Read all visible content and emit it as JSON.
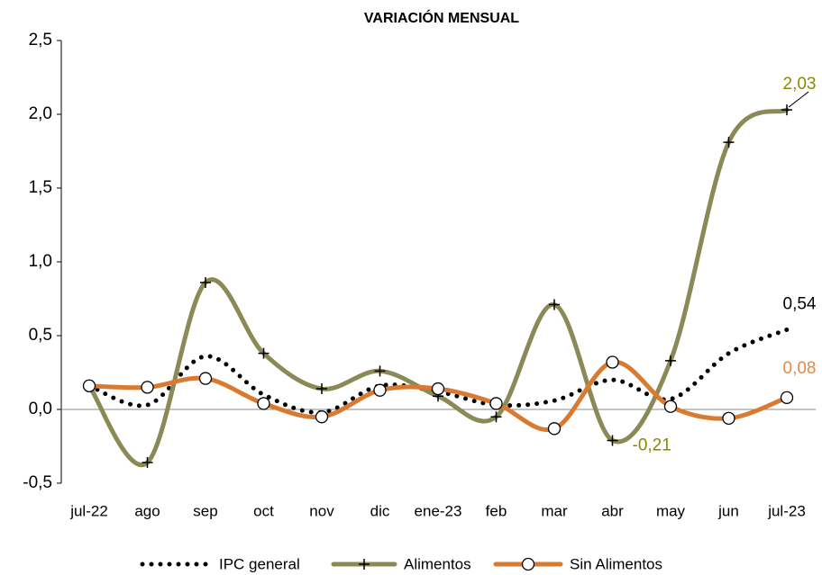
{
  "chart_data": {
    "type": "line",
    "title": "VARIACIÓN MENSUAL",
    "categories": [
      "jul-22",
      "ago",
      "sep",
      "oct",
      "nov",
      "dic",
      "ene-23",
      "feb",
      "mar",
      "abr",
      "may",
      "jun",
      "jul-23"
    ],
    "ylim": [
      -0.5,
      2.5
    ],
    "yticks": [
      {
        "value": -0.5,
        "label": "-0,5"
      },
      {
        "value": 0,
        "label": "0,0"
      },
      {
        "value": 0.5,
        "label": "0,5"
      },
      {
        "value": 1,
        "label": "1,0"
      },
      {
        "value": 1.5,
        "label": "1,5"
      },
      {
        "value": 2,
        "label": "2,0"
      },
      {
        "value": 2.5,
        "label": "2,5"
      }
    ],
    "legend": "bottom",
    "series": [
      {
        "name": "IPC general",
        "color": "#000000",
        "dash": "dotted",
        "marker": null,
        "values": [
          0.16,
          0.03,
          0.36,
          0.1,
          -0.02,
          0.16,
          0.12,
          0.03,
          0.06,
          0.2,
          0.07,
          0.38,
          0.54
        ],
        "value_labels": [
          null,
          null,
          null,
          null,
          null,
          null,
          null,
          null,
          null,
          null,
          null,
          null,
          "0,54"
        ],
        "label_color": "#000000"
      },
      {
        "name": "Alimentos",
        "color": "#8b8a57",
        "dash": "solid",
        "marker": "plus",
        "values": [
          0.16,
          -0.36,
          0.86,
          0.38,
          0.14,
          0.26,
          0.09,
          -0.05,
          0.71,
          -0.21,
          0.33,
          1.81,
          2.03
        ],
        "value_labels": [
          null,
          null,
          null,
          null,
          null,
          null,
          null,
          null,
          null,
          "-0,21",
          null,
          null,
          "2,03"
        ],
        "label_color": "#8a8a00"
      },
      {
        "name": "Sin Alimentos",
        "color": "#d97a32",
        "dash": "solid",
        "marker": "circle",
        "values": [
          0.16,
          0.15,
          0.21,
          0.04,
          -0.05,
          0.13,
          0.14,
          0.04,
          -0.13,
          0.32,
          0.02,
          -0.06,
          0.08
        ],
        "value_labels": [
          null,
          null,
          null,
          null,
          null,
          null,
          null,
          null,
          null,
          null,
          null,
          null,
          "0,08"
        ],
        "label_color": "#e08a4a"
      }
    ]
  }
}
